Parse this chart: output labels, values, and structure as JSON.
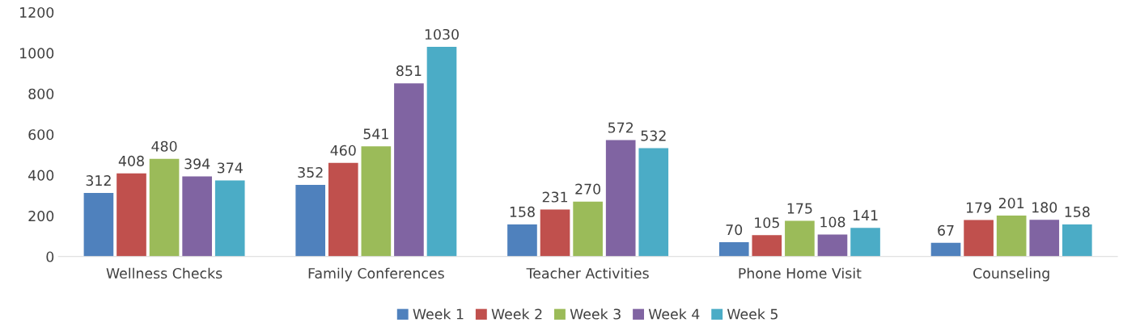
{
  "chart_data": {
    "type": "bar",
    "categories": [
      "Wellness Checks",
      "Family Conferences",
      "Teacher Activities",
      "Phone Home Visit",
      "Counseling"
    ],
    "series": [
      {
        "name": "Week 1",
        "color": "#4f81bd",
        "values": [
          312,
          352,
          158,
          70,
          67
        ]
      },
      {
        "name": "Week 2",
        "color": "#c0504d",
        "values": [
          408,
          460,
          231,
          105,
          179
        ]
      },
      {
        "name": "Week 3",
        "color": "#9bbb59",
        "values": [
          480,
          541,
          270,
          175,
          201
        ]
      },
      {
        "name": "Week 4",
        "color": "#8064a2",
        "values": [
          394,
          851,
          572,
          108,
          180
        ]
      },
      {
        "name": "Week 5",
        "color": "#4bacc6",
        "values": [
          374,
          1030,
          532,
          141,
          158
        ]
      }
    ],
    "ylim": [
      0,
      1200
    ],
    "yticks": [
      0,
      200,
      400,
      600,
      800,
      1000,
      1200
    ],
    "data_labels": true,
    "grid": false,
    "legend": "bottom"
  }
}
